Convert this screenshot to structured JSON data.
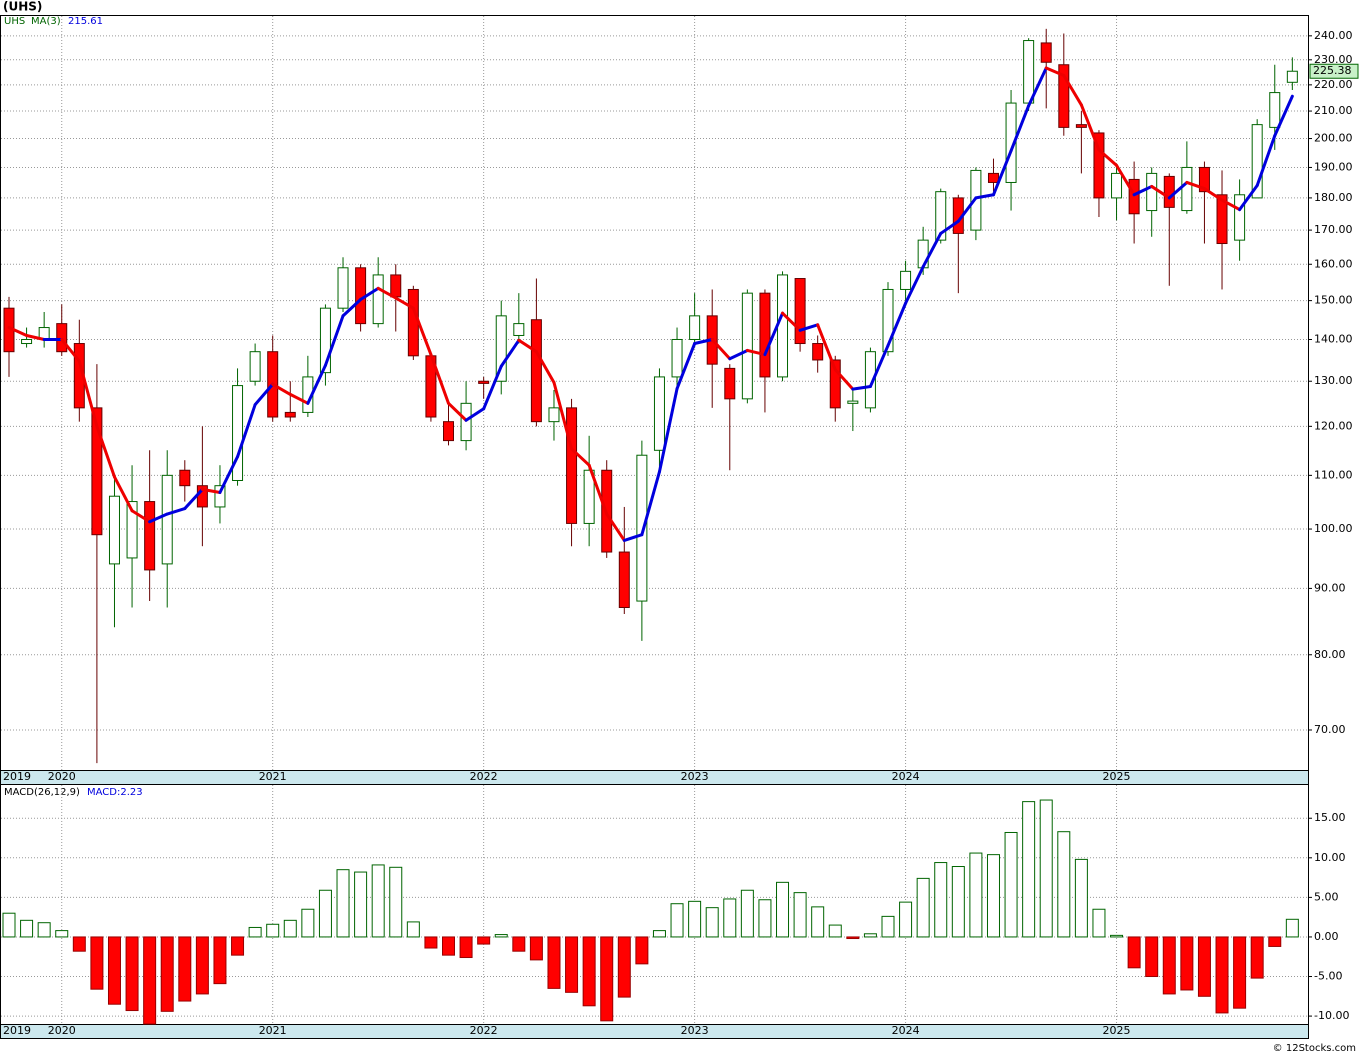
{
  "chart_data": [
    {
      "type": "candlestick",
      "title": "(UHS)",
      "symbol": "UHS",
      "ma_name": "MA(3)",
      "categories": [
        "2019",
        null,
        null,
        "2020",
        null,
        null,
        null,
        null,
        null,
        null,
        null,
        null,
        null,
        null,
        null,
        "2021",
        null,
        null,
        null,
        null,
        null,
        null,
        null,
        null,
        null,
        null,
        null,
        "2022",
        null,
        null,
        null,
        null,
        null,
        null,
        null,
        null,
        null,
        null,
        null,
        "2023",
        null,
        null,
        null,
        null,
        null,
        null,
        null,
        null,
        null,
        null,
        null,
        "2024",
        null,
        null,
        null,
        null,
        null,
        null,
        null,
        null,
        null,
        null,
        null,
        "2025",
        null,
        null,
        null,
        null,
        null,
        null,
        null,
        null,
        null,
        null
      ],
      "open": [
        148,
        139,
        140,
        144,
        139,
        124,
        94,
        95,
        105,
        94,
        111,
        108,
        104,
        109,
        130,
        137,
        123,
        123,
        132,
        148,
        159,
        144,
        157,
        153,
        136,
        121,
        117,
        130,
        130,
        141,
        145,
        121,
        124,
        101,
        111,
        96,
        88,
        115,
        131,
        140,
        146,
        133,
        126,
        152,
        131,
        156,
        139,
        135,
        125,
        124,
        137,
        153,
        159,
        167,
        180,
        170,
        188,
        185,
        213,
        237,
        228,
        205,
        202,
        180,
        186,
        176,
        187,
        176,
        190,
        181,
        167,
        180,
        204,
        221
      ],
      "high": [
        151,
        143,
        147,
        149,
        145,
        134,
        110,
        112,
        115,
        115,
        113,
        120,
        112,
        133,
        139,
        141,
        130,
        136,
        149,
        162,
        160,
        162,
        160,
        154,
        137,
        125,
        130,
        131,
        150,
        152,
        156,
        128,
        126,
        118,
        113,
        104,
        117,
        133,
        143,
        152,
        153,
        134,
        153,
        153,
        158,
        156,
        141,
        136,
        128,
        138,
        155,
        161,
        171,
        183,
        181,
        190,
        193,
        218,
        239,
        243,
        241,
        210,
        203,
        191,
        192,
        190,
        188,
        199,
        192,
        189,
        186,
        207,
        228,
        231
      ],
      "low": [
        131,
        138,
        138,
        136,
        121,
        66,
        84,
        87,
        88,
        87,
        105,
        97,
        101,
        108,
        129,
        121,
        121,
        122,
        129,
        147,
        142,
        143,
        142,
        135,
        121,
        116,
        115,
        126,
        127,
        139,
        120,
        117,
        97,
        97,
        95,
        86,
        82,
        110,
        127,
        138,
        124,
        111,
        125,
        123,
        130,
        137,
        132,
        121,
        119,
        123,
        136,
        150,
        157,
        166,
        152,
        167,
        182,
        176,
        210,
        211,
        201,
        188,
        174,
        173,
        166,
        168,
        154,
        175,
        166,
        153,
        161,
        180,
        196,
        218
      ],
      "close": [
        137,
        140,
        143,
        137,
        124,
        99,
        106,
        105,
        93,
        110,
        108,
        104,
        108,
        129,
        137,
        122,
        122,
        131,
        148,
        159,
        144,
        157,
        151,
        136,
        122,
        117,
        125,
        129.5,
        146,
        144,
        121,
        124,
        101,
        111,
        96,
        87,
        114,
        131,
        140,
        146,
        134,
        126,
        152,
        131,
        157,
        139,
        135,
        124,
        125.5,
        137,
        153,
        158,
        167,
        182,
        169,
        189,
        185,
        213,
        238,
        229,
        204,
        204,
        180,
        188,
        175,
        188,
        177,
        190,
        182,
        166,
        181,
        205,
        217,
        225.38
      ],
      "ma": [
        143,
        141,
        140,
        140,
        134.7,
        120,
        109.7,
        103.3,
        101.3,
        102.7,
        103.7,
        107.3,
        106.7,
        113.7,
        124.7,
        129.3,
        127,
        125,
        133.7,
        146,
        150.3,
        153.3,
        150.7,
        148,
        136.3,
        125,
        121.3,
        123.8,
        133.5,
        139.8,
        137,
        129.7,
        115.3,
        112,
        102.7,
        98,
        99,
        110.7,
        128.3,
        139,
        140,
        135.3,
        137.3,
        136.3,
        146.7,
        142.3,
        143.7,
        132.7,
        128.2,
        128.8,
        138.5,
        149.3,
        159.3,
        169,
        172.7,
        180,
        181,
        195.7,
        212,
        226.7,
        223.7,
        212.3,
        196,
        190.7,
        181,
        183.7,
        180,
        185,
        183,
        179.3,
        176.3,
        184,
        201,
        215.61
      ],
      "ylim": [
        65.2,
        248.6
      ],
      "log_scale": true,
      "grid": true,
      "yticks": [
        {
          "value": 70,
          "label": "70.00"
        },
        {
          "value": 80,
          "label": "80.00"
        },
        {
          "value": 90,
          "label": "90.00"
        },
        {
          "value": 100,
          "label": "100.00"
        },
        {
          "value": 110,
          "label": "110.00"
        },
        {
          "value": 120,
          "label": "120.00"
        },
        {
          "value": 130,
          "label": "130.00"
        },
        {
          "value": 140,
          "label": "140.00"
        },
        {
          "value": 150,
          "label": "150.00"
        },
        {
          "value": 160,
          "label": "160.00"
        },
        {
          "value": 170,
          "label": "170.00"
        },
        {
          "value": 180,
          "label": "180.00"
        },
        {
          "value": 190,
          "label": "190.00"
        },
        {
          "value": 200,
          "label": "200.00"
        },
        {
          "value": 210,
          "label": "210.00"
        },
        {
          "value": 220,
          "label": "220.00"
        },
        {
          "value": 230,
          "label": "230.00"
        },
        {
          "value": 240,
          "label": "240.00"
        }
      ],
      "up_color": "#006400",
      "down_color": "#ff0000",
      "ma_up_color": "#0000dd",
      "ma_down_color": "#ee0000"
    },
    {
      "type": "histogram",
      "name": "MACD(26,12,9)",
      "legend": "MACD:2.23",
      "values": [
        3.0,
        2.1,
        1.8,
        0.8,
        -1.8,
        -6.6,
        -8.5,
        -9.3,
        -11,
        -9.4,
        -8.1,
        -7.2,
        -5.9,
        -2.3,
        1.2,
        1.6,
        2.1,
        3.5,
        5.9,
        8.5,
        8.2,
        9.1,
        8.8,
        1.9,
        -1.4,
        -2.3,
        -2.6,
        -0.9,
        0.3,
        -1.8,
        -2.9,
        -6.5,
        -7.0,
        -8.7,
        -10.6,
        -7.6,
        -3.4,
        0.8,
        4.2,
        4.5,
        3.7,
        4.8,
        5.9,
        4.7,
        6.9,
        5.6,
        3.8,
        1.5,
        -0.2,
        0.4,
        2.6,
        4.4,
        7.4,
        9.4,
        8.9,
        10.6,
        10.4,
        13.2,
        17.1,
        17.3,
        13.3,
        9.8,
        3.5,
        0.2,
        -3.9,
        -5.0,
        -7.2,
        -6.7,
        -7.5,
        -9.6,
        -9.0,
        -5.2,
        -1.2,
        2.23
      ],
      "ylim": [
        -11.0,
        19.2
      ],
      "grid": true,
      "yticks": [
        {
          "value": -10,
          "label": "-10.00"
        },
        {
          "value": -5,
          "label": "-5.00"
        },
        {
          "value": 0,
          "label": "0.00"
        },
        {
          "value": 5,
          "label": "5.00"
        },
        {
          "value": 10,
          "label": "10.00"
        },
        {
          "value": 15,
          "label": "15.00"
        }
      ],
      "up_color": "#006400",
      "down_color": "#ff0000"
    }
  ],
  "footer": "© 12Stocks.com"
}
